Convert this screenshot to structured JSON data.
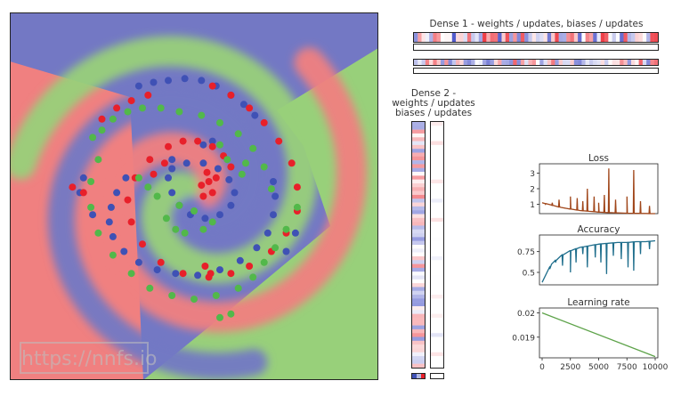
{
  "watermark": "https://nnfs.io",
  "colors": {
    "class_blue": "#3f51b5",
    "class_red": "#e8202a",
    "class_green": "#52b84a",
    "region_blue": "#7378c4",
    "region_red": "#f08080",
    "region_green": "#98d07a",
    "loss_line": "#a0461a",
    "accuracy_line": "#1f6e8c",
    "lr_line": "#5ea34a"
  },
  "panels": {
    "dense1_title": "Dense 1 - weights / updates, biases / updates",
    "dense2_title_lines": [
      "Dense 2 -",
      "weights / updates",
      "biases / updates"
    ]
  },
  "chart_data": [
    {
      "type": "scatter",
      "title": "",
      "description_classes": [
        "blue",
        "red",
        "green"
      ],
      "xlim": [
        -1,
        1
      ],
      "ylim": [
        -1,
        1
      ],
      "series": [
        {
          "color": "blue",
          "x": [
            -0.3,
            -0.22,
            -0.14,
            -0.05,
            0.04,
            0.12,
            0.2,
            0.27,
            0.33,
            -0.37,
            -0.42,
            -0.45,
            -0.46,
            -0.44,
            -0.38,
            -0.3,
            -0.2,
            -0.1,
            0.02,
            0.14,
            0.25,
            0.34,
            0.4,
            0.43,
            0.44,
            0.43,
            -0.12,
            -0.04,
            0.05,
            0.13,
            0.19,
            0.22,
            0.2,
            0.14,
            0.06,
            -0.02,
            -0.08,
            -0.12,
            -0.14,
            -0.12,
            0.5,
            0.55,
            -0.6,
            -0.62,
            -0.55,
            0.05,
            0.1
          ],
          "y": [
            0.6,
            0.62,
            0.63,
            0.64,
            0.63,
            0.6,
            0.55,
            0.5,
            0.44,
            0.1,
            0.02,
            -0.06,
            -0.14,
            -0.22,
            -0.3,
            -0.36,
            -0.4,
            -0.42,
            -0.43,
            -0.4,
            -0.35,
            -0.28,
            -0.2,
            -0.1,
            0.0,
            0.08,
            0.15,
            0.18,
            0.18,
            0.15,
            0.09,
            0.02,
            -0.05,
            -0.1,
            -0.12,
            -0.1,
            -0.05,
            0.02,
            0.1,
            0.2,
            -0.3,
            -0.2,
            0.1,
            0.02,
            -0.1,
            0.28,
            0.3
          ]
        },
        {
          "color": "red",
          "x": [
            -0.5,
            -0.42,
            -0.34,
            -0.25,
            0.1,
            0.2,
            0.3,
            0.38,
            0.46,
            0.53,
            0.56,
            0.56,
            0.5,
            0.42,
            0.3,
            0.2,
            0.08,
            -0.06,
            -0.18,
            -0.28,
            -0.34,
            -0.36,
            -0.32,
            -0.24,
            -0.14,
            -0.06,
            0.02,
            0.1,
            0.16,
            0.2,
            0.1,
            0.05,
            0.08,
            0.12,
            0.04,
            0.07,
            -0.6,
            -0.66,
            -0.22,
            -0.16,
            0.06,
            0.09
          ],
          "y": [
            0.42,
            0.48,
            0.52,
            0.55,
            0.6,
            0.55,
            0.48,
            0.4,
            0.3,
            0.18,
            0.05,
            -0.08,
            -0.2,
            -0.3,
            -0.38,
            -0.42,
            -0.44,
            -0.42,
            -0.36,
            -0.26,
            -0.14,
            -0.02,
            0.1,
            0.2,
            0.27,
            0.3,
            0.3,
            0.27,
            0.22,
            0.16,
            0.02,
            0.0,
            0.08,
            0.1,
            0.06,
            0.13,
            0.02,
            0.05,
            0.12,
            0.18,
            -0.38,
            -0.42
          ]
        },
        {
          "color": "green",
          "x": [
            -0.55,
            -0.5,
            -0.44,
            -0.36,
            -0.28,
            -0.18,
            -0.08,
            0.04,
            0.14,
            0.24,
            0.32,
            0.38,
            0.42,
            -0.52,
            -0.56,
            -0.56,
            -0.52,
            -0.44,
            -0.34,
            -0.24,
            -0.12,
            0.0,
            0.12,
            0.24,
            0.32,
            0.38,
            0.44,
            0.5,
            0.56,
            -0.08,
            0.0,
            -0.2,
            -0.15,
            -0.1,
            -0.05,
            0.05,
            0.1,
            0.14,
            0.18,
            -0.3,
            -0.25,
            0.26,
            0.28,
            0.2,
            0.14
          ],
          "y": [
            0.32,
            0.36,
            0.42,
            0.46,
            0.48,
            0.48,
            0.46,
            0.44,
            0.4,
            0.34,
            0.26,
            0.16,
            0.04,
            0.2,
            0.08,
            -0.06,
            -0.2,
            -0.32,
            -0.42,
            -0.5,
            -0.54,
            -0.56,
            -0.54,
            -0.5,
            -0.44,
            -0.36,
            -0.28,
            -0.18,
            -0.06,
            -0.05,
            -0.08,
            0.0,
            -0.12,
            -0.18,
            -0.2,
            -0.18,
            -0.14,
            0.28,
            0.2,
            0.1,
            0.05,
            0.12,
            0.18,
            -0.64,
            -0.66
          ]
        }
      ]
    },
    {
      "type": "line",
      "title": "Loss",
      "yticks": [
        1,
        2,
        3
      ],
      "ylim": [
        0.4,
        3.6
      ],
      "xlim": [
        0,
        10000
      ],
      "baseline": [
        1.1,
        0.95,
        0.8,
        0.7,
        0.6,
        0.55,
        0.5,
        0.47,
        0.45,
        0.43,
        0.42,
        0.41,
        0.4
      ],
      "spikes": [
        [
          300,
          1.0
        ],
        [
          900,
          1.1
        ],
        [
          1500,
          1.3
        ],
        [
          2500,
          1.5
        ],
        [
          3100,
          1.4
        ],
        [
          3600,
          1.2
        ],
        [
          4000,
          2.0
        ],
        [
          4600,
          1.5
        ],
        [
          5000,
          1.1
        ],
        [
          5500,
          1.6
        ],
        [
          5900,
          3.3
        ],
        [
          6500,
          1.3
        ],
        [
          7500,
          1.5
        ],
        [
          8100,
          3.2
        ],
        [
          8700,
          1.2
        ],
        [
          9500,
          0.9
        ]
      ]
    },
    {
      "type": "line",
      "title": "Accuracy",
      "yticks": [
        0.5,
        0.75
      ],
      "ylim": [
        0.35,
        0.95
      ],
      "xlim": [
        0,
        10000
      ],
      "baseline": [
        0.38,
        0.6,
        0.7,
        0.76,
        0.8,
        0.82,
        0.84,
        0.85,
        0.86,
        0.86,
        0.87,
        0.87,
        0.88
      ],
      "dips": [
        [
          700,
          0.55
        ],
        [
          1200,
          0.62
        ],
        [
          1800,
          0.58
        ],
        [
          2500,
          0.5
        ],
        [
          3000,
          0.62
        ],
        [
          3600,
          0.72
        ],
        [
          4000,
          0.56
        ],
        [
          4700,
          0.68
        ],
        [
          5200,
          0.62
        ],
        [
          5700,
          0.48
        ],
        [
          6300,
          0.7
        ],
        [
          7000,
          0.66
        ],
        [
          7600,
          0.56
        ],
        [
          8100,
          0.52
        ],
        [
          8700,
          0.72
        ],
        [
          9500,
          0.78
        ]
      ]
    },
    {
      "type": "line",
      "title": "Learning rate",
      "yticks": [
        0.019,
        0.02
      ],
      "ylim": [
        0.01815,
        0.0202
      ],
      "xlim": [
        0,
        10000
      ],
      "xticks": [
        0,
        2500,
        5000,
        7500,
        10000
      ],
      "x": [
        0,
        10000
      ],
      "y": [
        0.02,
        0.0182
      ]
    }
  ]
}
